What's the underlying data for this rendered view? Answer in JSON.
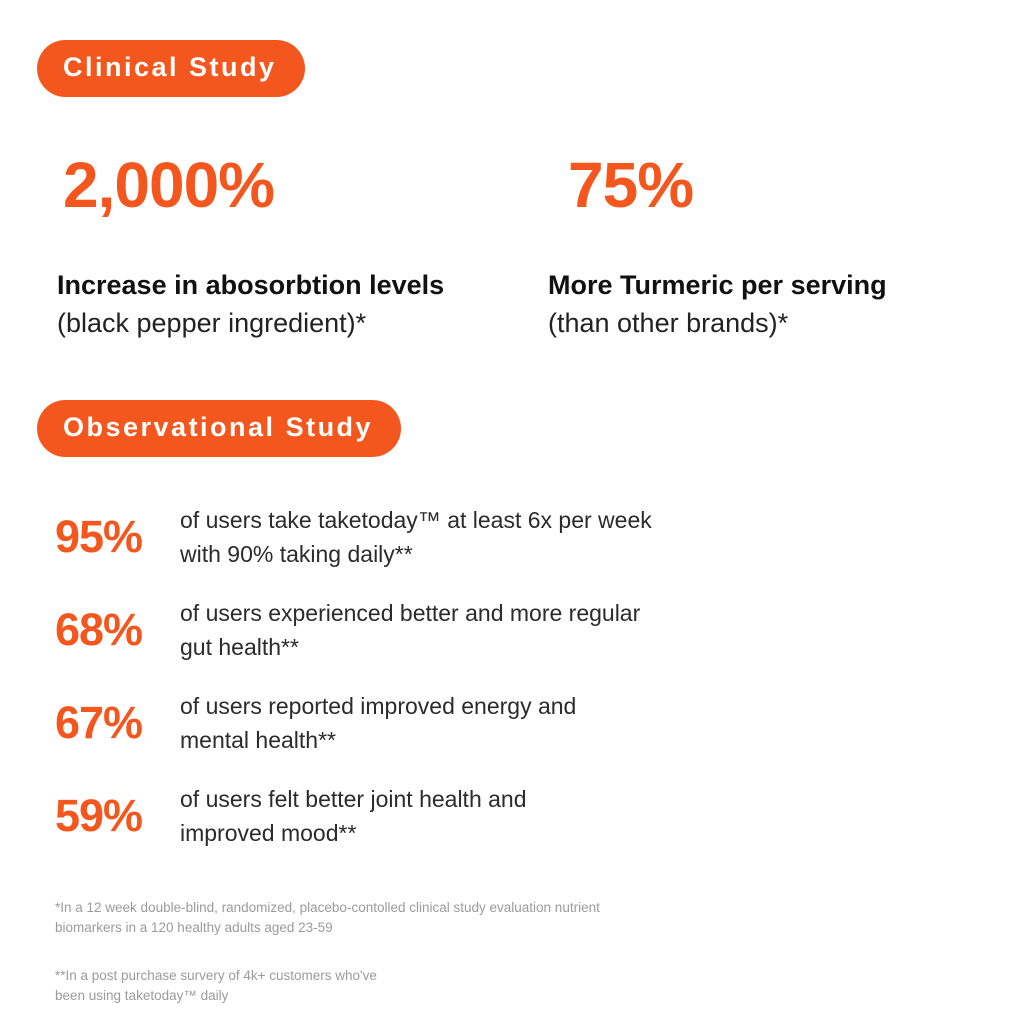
{
  "accent_color": "#F4571E",
  "badges": {
    "clinical": "Clinical Study",
    "observational": "Observational Study"
  },
  "clinical_stats": [
    {
      "value": "2,000%",
      "headline": "Increase in abosorbtion levels",
      "subline": "(black pepper ingredient)*"
    },
    {
      "value": "75%",
      "headline": "More Turmeric per serving",
      "subline": "(than other brands)*"
    }
  ],
  "observational_stats": [
    {
      "value": "95%",
      "line1": "of users take taketoday™ at least 6x per week",
      "line2": "with 90% taking daily**"
    },
    {
      "value": "68%",
      "line1": "of users experienced better and more regular",
      "line2": "gut health**"
    },
    {
      "value": "67%",
      "line1": "of users reported improved energy and",
      "line2": "mental health**"
    },
    {
      "value": "59%",
      "line1": "of users felt better joint health and",
      "line2": "improved mood**"
    }
  ],
  "footnotes": [
    {
      "line1": "*In a 12 week double-blind, randomized, placebo-contolled clinical study evaluation nutrient",
      "line2": "biomarkers in a 120 healthy adults aged 23-59"
    },
    {
      "line1": "**In a post purchase survery of 4k+ customers who've",
      "line2": "been using taketoday™ daily"
    }
  ]
}
